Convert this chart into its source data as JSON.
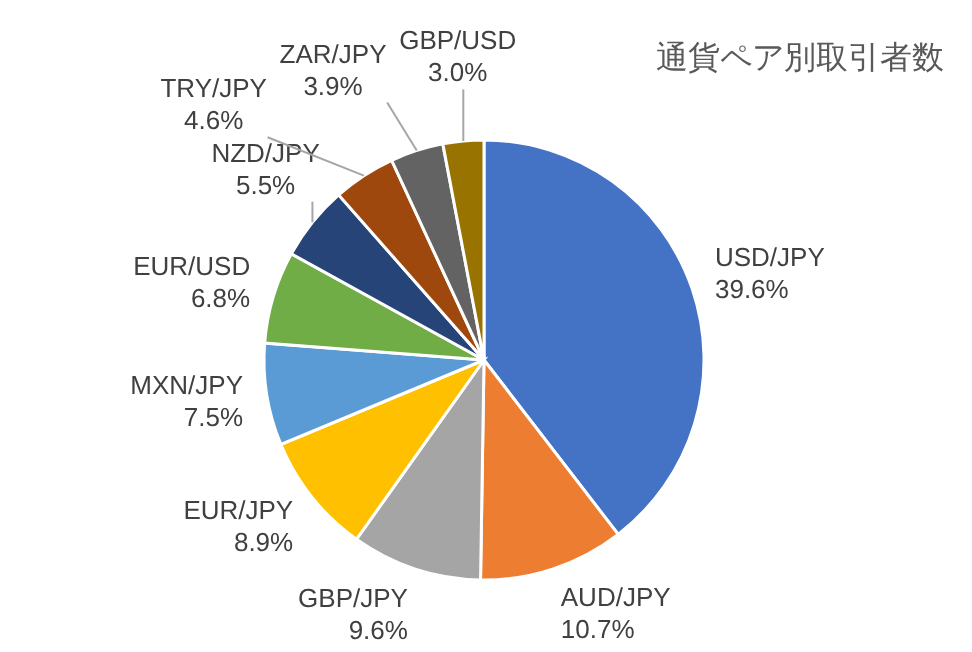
{
  "chart_data": {
    "type": "pie",
    "title": "通貨ペア別取引者数",
    "categories": [
      "USD/JPY",
      "AUD/JPY",
      "GBP/JPY",
      "EUR/JPY",
      "MXN/JPY",
      "EUR/USD",
      "NZD/JPY",
      "TRY/JPY",
      "ZAR/JPY",
      "GBP/USD"
    ],
    "values": [
      39.6,
      10.7,
      9.6,
      8.9,
      7.5,
      6.8,
      5.5,
      4.6,
      3.9,
      3.0
    ],
    "value_labels": [
      "39.6%",
      "10.7%",
      "9.6%",
      "8.9%",
      "7.5%",
      "6.8%",
      "5.5%",
      "4.6%",
      "3.9%",
      "3.0%"
    ],
    "colors": [
      "#4472c4",
      "#ed7d31",
      "#a5a5a5",
      "#ffc000",
      "#5b9bd5",
      "#70ad47",
      "#264478",
      "#9e480e",
      "#636363",
      "#997300"
    ]
  }
}
